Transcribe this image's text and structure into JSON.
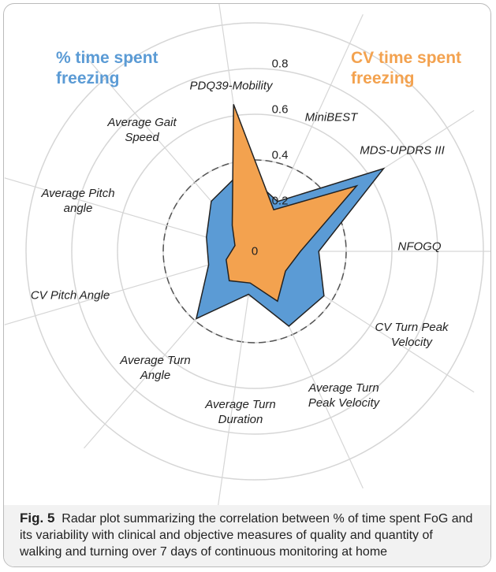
{
  "chart_data": {
    "type": "radar",
    "categories": [
      "PDQ39-Mobility",
      "MiniBEST",
      "MDS-UPDRS III",
      "NFOGQ",
      "CV Turn Peak Velocity",
      "Average Turn Peak Velocity",
      "Average Turn Duration",
      "Average Turn Angle",
      "CV Pitch Angle",
      "Average Pitch angle",
      "Average Gait Speed"
    ],
    "series": [
      {
        "name": "% time spent freezing",
        "color": "#5b9bd5",
        "values": [
          0.36,
          0.24,
          0.67,
          0.28,
          0.36,
          0.36,
          0.19,
          0.39,
          0.21,
          0.22,
          0.29
        ]
      },
      {
        "name": "CV time spent freezing",
        "color": "#f3a24f",
        "values": [
          0.65,
          0.2,
          0.53,
          0.2,
          0.16,
          0.24,
          0.14,
          0.17,
          0.13,
          0.09,
          0.15
        ]
      }
    ],
    "rlim": [
      0,
      1
    ],
    "rticks": [
      0,
      0.2,
      0.4,
      0.6,
      0.8
    ],
    "reference_circle": 0.4
  },
  "caption": {
    "label": "Fig. 5",
    "text": "Radar plot summarizing the correlation between % of time spent FoG and its variability with clinical and objective measures of quality and quantity of walking and turning over 7 days of continuous monitoring at home"
  }
}
